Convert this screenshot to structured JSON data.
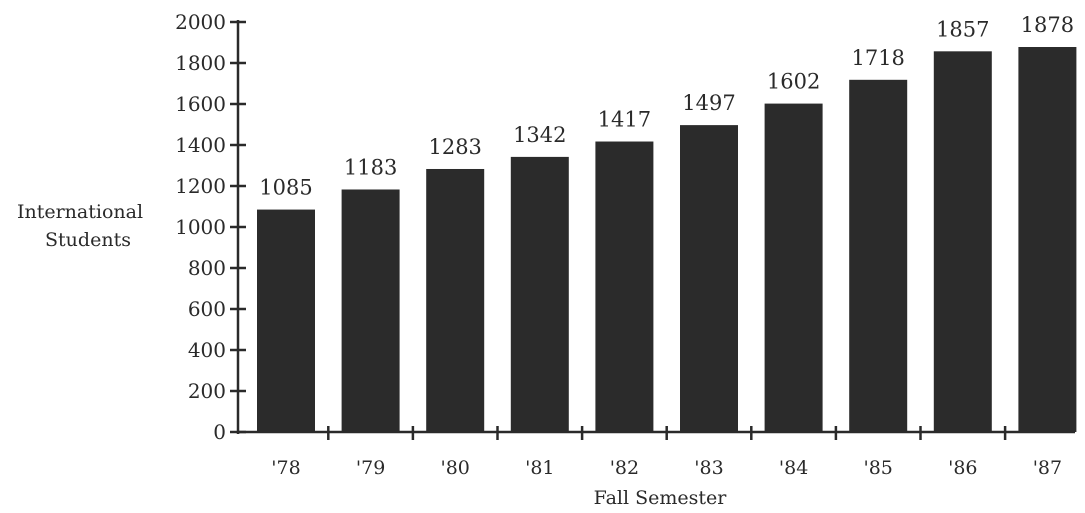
{
  "chart_data": {
    "type": "bar",
    "categories": [
      "'78",
      "'79",
      "'80",
      "'81",
      "'82",
      "'83",
      "'84",
      "'85",
      "'86",
      "'87"
    ],
    "values": [
      1085,
      1183,
      1283,
      1342,
      1417,
      1497,
      1602,
      1718,
      1857,
      1878
    ],
    "value_labels": [
      "1085",
      "1183",
      "1283",
      "1342",
      "1417",
      "1497",
      "1602",
      "1718",
      "1857",
      "1878"
    ],
    "y_ticks": [
      0,
      200,
      400,
      600,
      800,
      1000,
      1200,
      1400,
      1600,
      1800,
      2000
    ],
    "y_tick_labels": [
      "0",
      "200",
      "400",
      "600",
      "800",
      "1000",
      "1200",
      "1400",
      "1600",
      "1800",
      "2000"
    ],
    "ylim": [
      0,
      2000
    ],
    "title": "",
    "xlabel": "Fall Semester",
    "ylabel": [
      "International",
      "Students"
    ],
    "grid": false,
    "legend": "none",
    "bar_color": "#2b2b2b",
    "axis_color": "#2a2a2a"
  }
}
